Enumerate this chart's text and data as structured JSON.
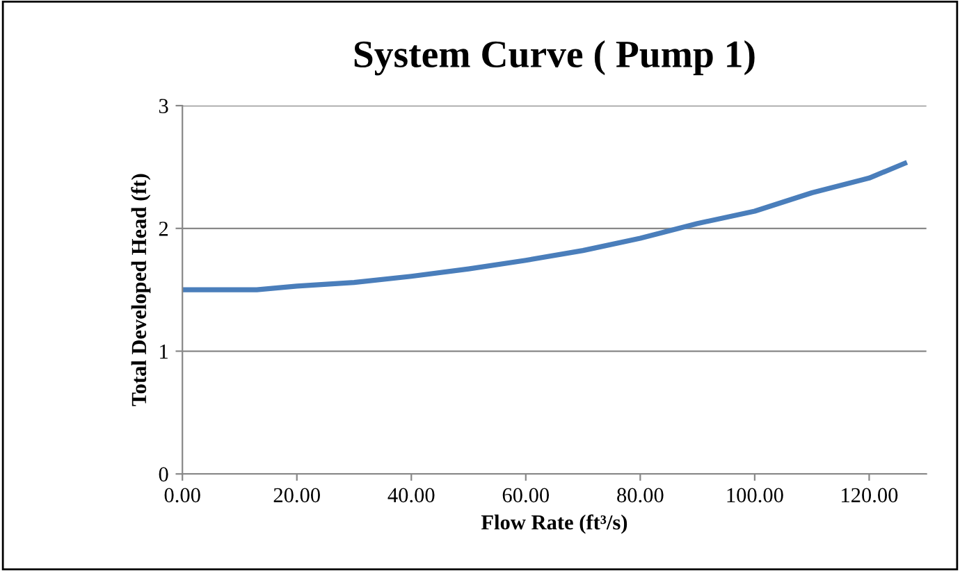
{
  "chart_data": {
    "type": "line",
    "title": "System Curve ( Pump 1)",
    "xlabel": "Flow Rate (ft³/s)",
    "ylabel": "Total Developed Head (ft)",
    "x": [
      0,
      13,
      20,
      30,
      40,
      50,
      60,
      70,
      80,
      90,
      100,
      110,
      120,
      126.2
    ],
    "series": [
      {
        "color": "#4a7ebb",
        "values": [
          1.5,
          1.5,
          1.53,
          1.56,
          1.61,
          1.67,
          1.74,
          1.82,
          1.92,
          2.04,
          2.14,
          2.29,
          2.41,
          2.53
        ]
      }
    ],
    "xlim": [
      0,
      130
    ],
    "xticks": [
      {
        "value": 0,
        "label": "0.00"
      },
      {
        "value": 20,
        "label": "20.00"
      },
      {
        "value": 40,
        "label": "40.00"
      },
      {
        "value": 60,
        "label": "60.00"
      },
      {
        "value": 80,
        "label": "80.00"
      },
      {
        "value": 100,
        "label": "100.00"
      },
      {
        "value": 120,
        "label": "120.00"
      }
    ],
    "ylim": [
      0,
      3
    ],
    "yticks": [
      0,
      1,
      2,
      3
    ],
    "grid": "y",
    "legend": false,
    "marker": "none",
    "line_style": "solid"
  }
}
